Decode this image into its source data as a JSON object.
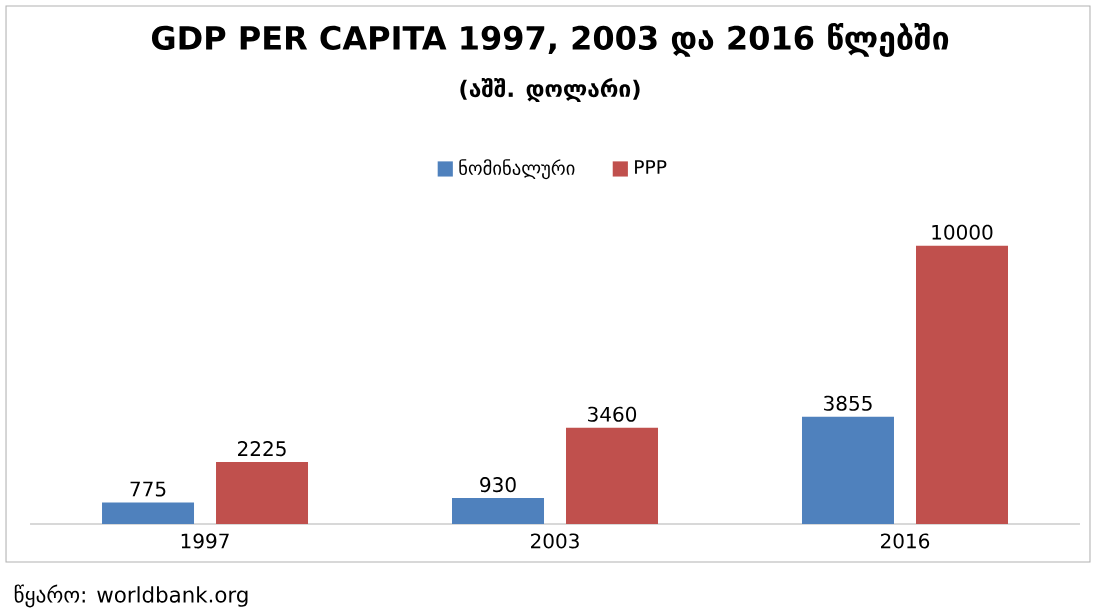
{
  "chart_data": {
    "type": "bar",
    "title": "GDP PER CAPITA 1997, 2003 და 2016 წლებში",
    "subtitle": "(აშშ. დოლარი)",
    "categories": [
      "1997",
      "2003",
      "2016"
    ],
    "series": [
      {
        "name": "ნომინალური",
        "color": "#4f81bd",
        "values": [
          775,
          930,
          3855
        ]
      },
      {
        "name": "PPP",
        "color": "#c0504d",
        "values": [
          2225,
          3460,
          10000
        ]
      }
    ],
    "data_labels": true,
    "legend": "top",
    "annotations": [
      "წყარო: worldbank.org"
    ]
  }
}
